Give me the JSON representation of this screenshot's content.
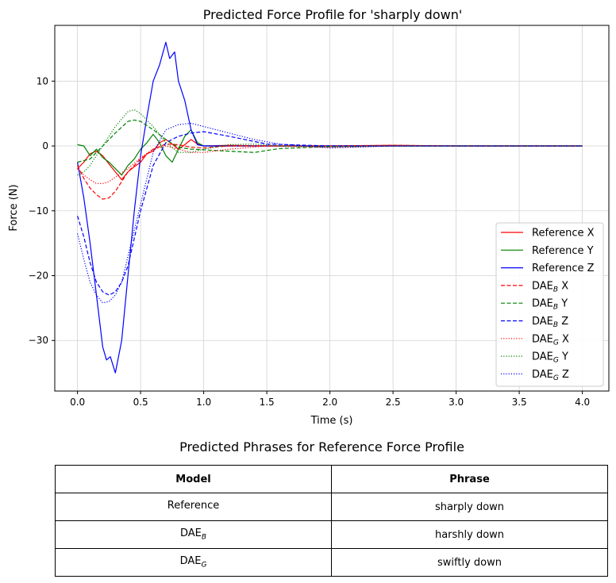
{
  "chart_data": {
    "type": "line",
    "title": "Predicted Force Profile for 'sharply down'",
    "xlabel": "Time (s)",
    "ylabel": "Force (N)",
    "xlim": [
      -0.18,
      4.21
    ],
    "ylim": [
      -37.8,
      18.6
    ],
    "xticks": [
      0.0,
      0.5,
      1.0,
      1.5,
      2.0,
      2.5,
      3.0,
      3.5,
      4.0
    ],
    "xtick_labels": [
      "0.0",
      "0.5",
      "1.0",
      "1.5",
      "2.0",
      "2.5",
      "3.0",
      "3.5",
      "4.0"
    ],
    "yticks": [
      -30,
      -20,
      -10,
      0,
      10
    ],
    "ytick_labels": [
      "−30",
      "−20",
      "−10",
      "0",
      "10"
    ],
    "grid": true,
    "legend_position": "lower right",
    "series": [
      {
        "name": "Reference X",
        "color": "#ff0000",
        "dash": "solid",
        "x": [
          0,
          0.05,
          0.1,
          0.15,
          0.2,
          0.25,
          0.3,
          0.35,
          0.4,
          0.45,
          0.5,
          0.55,
          0.6,
          0.65,
          0.7,
          0.75,
          0.8,
          0.85,
          0.9,
          0.95,
          1.0,
          1.2,
          1.5,
          2.0,
          2.5,
          3.0,
          3.5,
          4.0
        ],
        "y": [
          -3.5,
          -2.5,
          -1.2,
          -0.8,
          -1.5,
          -2.8,
          -4.0,
          -5.2,
          -4.0,
          -3.2,
          -2.5,
          -1.2,
          -0.8,
          0.5,
          1.0,
          0.3,
          -0.5,
          0.2,
          1.0,
          0.3,
          0.0,
          0.1,
          0.0,
          0.0,
          0.1,
          0.0,
          0.0,
          0.0
        ]
      },
      {
        "name": "Reference Y",
        "color": "#008000",
        "dash": "solid",
        "x": [
          0,
          0.05,
          0.1,
          0.15,
          0.2,
          0.25,
          0.3,
          0.35,
          0.4,
          0.45,
          0.5,
          0.55,
          0.6,
          0.65,
          0.7,
          0.75,
          0.8,
          0.85,
          0.9,
          0.95,
          1.0,
          1.2,
          1.5,
          2.0,
          2.5,
          3.0,
          3.5,
          4.0
        ],
        "y": [
          0.2,
          0.0,
          -1.5,
          -0.5,
          -1.8,
          -2.5,
          -3.5,
          -4.5,
          -3.0,
          -2.0,
          -0.5,
          0.5,
          1.8,
          0.5,
          -1.5,
          -2.5,
          -0.5,
          1.5,
          2.5,
          0.5,
          0.0,
          0.0,
          0.0,
          0.0,
          0.0,
          0.0,
          0.0,
          0.0
        ]
      },
      {
        "name": "Reference Z",
        "color": "#0000ff",
        "dash": "solid",
        "x": [
          0,
          0.05,
          0.1,
          0.15,
          0.2,
          0.23,
          0.26,
          0.3,
          0.35,
          0.4,
          0.45,
          0.5,
          0.55,
          0.6,
          0.65,
          0.7,
          0.73,
          0.77,
          0.8,
          0.85,
          0.9,
          0.95,
          1.0,
          1.2,
          1.5,
          2.0,
          2.5,
          3.0,
          3.5,
          4.0
        ],
        "y": [
          -2.5,
          -8.0,
          -15.0,
          -23.0,
          -31.0,
          -33.0,
          -32.5,
          -35.0,
          -30.0,
          -20.0,
          -10.0,
          -1.5,
          4.5,
          10.0,
          12.5,
          16.0,
          13.5,
          14.5,
          10.0,
          7.0,
          2.5,
          0.2,
          0.0,
          0.0,
          0.0,
          0.0,
          0.0,
          0.0,
          0.0,
          0.0
        ]
      },
      {
        "name": "DAE_B X",
        "color": "#ff0000",
        "dash": "dashed",
        "x": [
          0,
          0.05,
          0.1,
          0.15,
          0.2,
          0.25,
          0.3,
          0.35,
          0.4,
          0.5,
          0.6,
          0.7,
          0.8,
          0.9,
          1.0,
          1.2,
          1.5,
          2.0,
          2.5,
          3.0,
          3.5,
          4.0
        ],
        "y": [
          -3.0,
          -5.0,
          -6.5,
          -7.5,
          -8.2,
          -8.0,
          -7.0,
          -5.5,
          -4.0,
          -2.0,
          -0.5,
          0.3,
          0.2,
          -0.2,
          -0.3,
          0.0,
          0.0,
          0.0,
          0.1,
          0.0,
          0.0,
          0.0
        ]
      },
      {
        "name": "DAE_B Y",
        "color": "#008000",
        "dash": "dashed",
        "x": [
          0,
          0.1,
          0.2,
          0.3,
          0.4,
          0.45,
          0.5,
          0.6,
          0.7,
          0.8,
          0.9,
          1.0,
          1.2,
          1.4,
          1.6,
          2.0,
          2.5,
          3.0,
          3.5,
          4.0
        ],
        "y": [
          -2.5,
          -2.0,
          0.0,
          2.0,
          3.8,
          4.0,
          3.8,
          2.5,
          1.0,
          -0.2,
          -0.5,
          -0.6,
          -0.8,
          -1.0,
          -0.4,
          -0.1,
          0.0,
          0.0,
          0.0,
          0.0
        ]
      },
      {
        "name": "DAE_B Z",
        "color": "#0000ff",
        "dash": "dashed",
        "x": [
          0,
          0.05,
          0.1,
          0.15,
          0.2,
          0.25,
          0.3,
          0.35,
          0.4,
          0.5,
          0.6,
          0.7,
          0.8,
          0.9,
          1.0,
          1.2,
          1.5,
          2.0,
          2.5,
          3.0,
          3.5,
          4.0
        ],
        "y": [
          -10.8,
          -14.0,
          -18.0,
          -21.0,
          -22.5,
          -23.0,
          -22.5,
          -21.0,
          -18.5,
          -10.0,
          -3.0,
          0.5,
          1.5,
          2.0,
          2.2,
          1.5,
          0.3,
          0.0,
          0.0,
          0.0,
          0.0,
          0.0
        ]
      },
      {
        "name": "DAE_G X",
        "color": "#ff0000",
        "dash": "dotted",
        "x": [
          0,
          0.05,
          0.1,
          0.15,
          0.2,
          0.25,
          0.3,
          0.4,
          0.5,
          0.6,
          0.7,
          0.8,
          0.9,
          1.0,
          1.2,
          1.5,
          2.0,
          2.5,
          3.0,
          3.5,
          4.0
        ],
        "y": [
          -3.5,
          -4.5,
          -5.2,
          -5.8,
          -5.8,
          -5.5,
          -4.8,
          -3.5,
          -1.8,
          -0.5,
          0.0,
          -0.5,
          -1.0,
          -1.0,
          -0.5,
          0.0,
          -0.2,
          0.0,
          0.0,
          0.0,
          0.0
        ]
      },
      {
        "name": "DAE_G Y",
        "color": "#008000",
        "dash": "dotted",
        "x": [
          0,
          0.05,
          0.1,
          0.2,
          0.3,
          0.4,
          0.45,
          0.5,
          0.6,
          0.7,
          0.8,
          0.9,
          1.0,
          1.2,
          1.4,
          1.6,
          2.0,
          2.5,
          3.0,
          3.5,
          4.0
        ],
        "y": [
          -4.5,
          -4.0,
          -3.0,
          0.0,
          3.0,
          5.3,
          5.6,
          5.0,
          3.0,
          0.5,
          -1.0,
          -1.0,
          -0.5,
          0.2,
          0.3,
          0.0,
          -0.1,
          0.0,
          0.0,
          0.0,
          0.0
        ]
      },
      {
        "name": "DAE_G Z",
        "color": "#0000ff",
        "dash": "dotted",
        "x": [
          0,
          0.05,
          0.1,
          0.15,
          0.2,
          0.25,
          0.3,
          0.35,
          0.4,
          0.5,
          0.6,
          0.7,
          0.8,
          0.9,
          1.0,
          1.2,
          1.4,
          1.6,
          2.0,
          2.5,
          3.0,
          3.5,
          4.0
        ],
        "y": [
          -13.5,
          -17.5,
          -21.0,
          -23.0,
          -24.2,
          -24.0,
          -23.0,
          -21.0,
          -17.0,
          -9.0,
          -1.0,
          2.5,
          3.3,
          3.5,
          3.0,
          2.0,
          1.0,
          0.3,
          -0.3,
          0.0,
          0.0,
          0.0,
          0.0
        ]
      }
    ]
  },
  "legend": [
    {
      "base": "Reference",
      "sub": "",
      "axis": " X"
    },
    {
      "base": "Reference",
      "sub": "",
      "axis": " Y"
    },
    {
      "base": "Reference",
      "sub": "",
      "axis": " Z"
    },
    {
      "base": "DAE",
      "sub": "B",
      "axis": " X"
    },
    {
      "base": "DAE",
      "sub": "B",
      "axis": " Y"
    },
    {
      "base": "DAE",
      "sub": "B",
      "axis": " Z"
    },
    {
      "base": "DAE",
      "sub": "G",
      "axis": " X"
    },
    {
      "base": "DAE",
      "sub": "G",
      "axis": " Y"
    },
    {
      "base": "DAE",
      "sub": "G",
      "axis": " Z"
    }
  ],
  "table": {
    "title": "Predicted Phrases for Reference Force Profile",
    "headers": {
      "model": "Model",
      "phrase": "Phrase"
    },
    "rows": [
      {
        "model": "Reference",
        "model_sub": "",
        "phrase": "sharply down"
      },
      {
        "model": "DAE",
        "model_sub": "B",
        "phrase": "harshly down"
      },
      {
        "model": "DAE",
        "model_sub": "G",
        "phrase": "swiftly  down"
      }
    ]
  }
}
